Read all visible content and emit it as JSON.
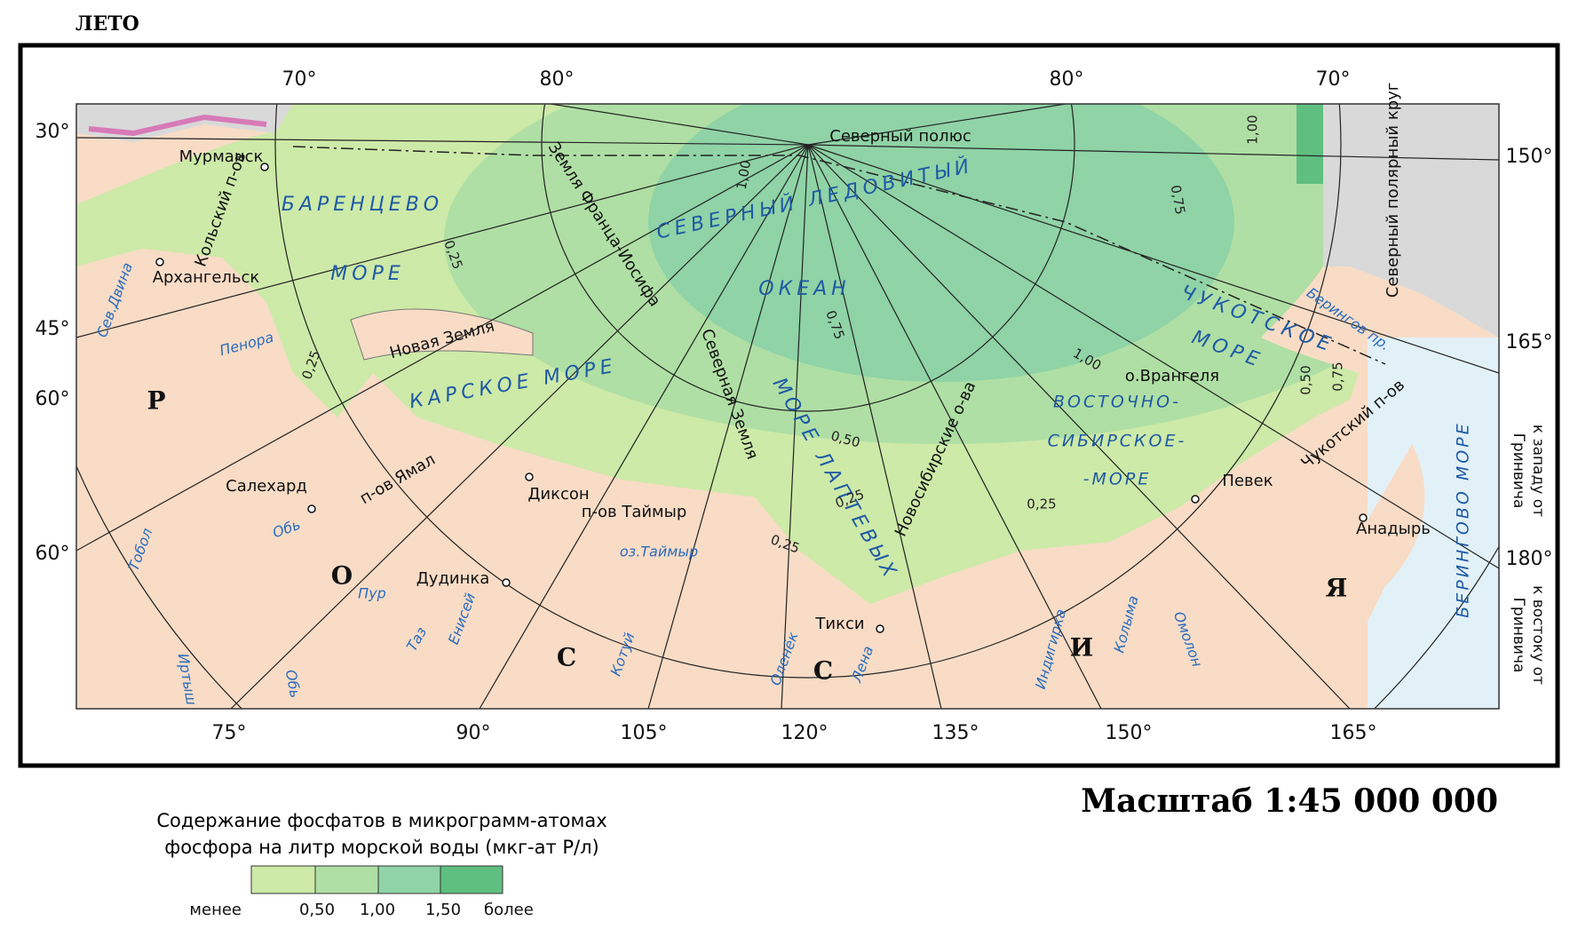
{
  "header": {
    "title": "ЛЕТО"
  },
  "scale": "Масштаб 1:45 000 000",
  "legend": {
    "title_lines": [
      "Содержание фосфатов в микрограмм-атомах",
      "фосфора на литр морской воды (мкг-ат Р/л)"
    ],
    "labels": [
      "менее",
      "0,50",
      "1,00",
      "1,50",
      "более"
    ],
    "colors": [
      "#cdeaa8",
      "#afdfa4",
      "#8fd3a6",
      "#5fbf80"
    ]
  },
  "map": {
    "coordinates": {
      "top": [
        "70°",
        "80°",
        "80°",
        "70°"
      ],
      "bottom": [
        "75°",
        "90°",
        "105°",
        "120°",
        "135°",
        "150°",
        "165°"
      ],
      "left": [
        "30°",
        "45°",
        "60°",
        "60°"
      ],
      "right": [
        "150°",
        "165°",
        "180°"
      ],
      "right_notes": [
        [
          "к западу от",
          "Гринвича"
        ],
        [
          "к востоку от",
          "Гринвича"
        ]
      ]
    },
    "labels": [
      "Мурманск",
      "Кольский п-ов",
      "БАРЕНЦЕВО",
      "МОРЕ",
      "Архангельск",
      "Сев.Двина",
      "Новая Земля",
      "Пенора",
      "Р",
      "КАРСКОЕ МОРЕ",
      "Земля Франца-Иосифа",
      "СЕВЕРНЫЙ ЛЕДОВИТЫЙ",
      "ОКЕАН",
      "Северный полюс",
      "Северная Земля",
      "МОРЕ ЛАПТЕВЫХ",
      "Салехард",
      "п-ов Ямал",
      "Обь",
      "Диксон",
      "п-ов Таймыр",
      "оз.Таймыр",
      "Дудинка",
      "О",
      "Енисей",
      "Пур",
      "Таз",
      "Тобол",
      "Иртыш",
      "Обь",
      "С",
      "Котуй",
      "Оленёк",
      "С",
      "Лена",
      "Тикси",
      "Новосибирские о-ва",
      "ВОСТОЧНО-",
      "СИБИРСКОЕ-",
      "-МОРЕ",
      "о.Врангеля",
      "ЧУКОТСКОЕ",
      "МОРЕ",
      "Берингов пр.",
      "Северный полярный круг",
      "Чукотский п-ов",
      "Певек",
      "Анадырь",
      "Я",
      "И",
      "Индигирка",
      "Колыма",
      "Омолон",
      "БЕРИНГОВО МОРЕ"
    ],
    "isolines": [
      "0,25",
      "0,25",
      "1,00",
      "0,75",
      "0,50",
      "0,25",
      "0,25",
      "0,25",
      "1,00",
      "0,75",
      "1,00",
      "0,50",
      "0,75"
    ]
  }
}
